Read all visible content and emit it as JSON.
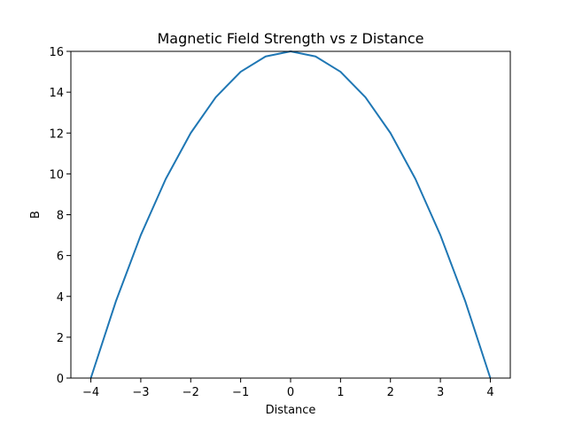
{
  "chart_data": {
    "type": "line",
    "title": "Magnetic Field Strength vs z Distance",
    "xlabel": "Distance",
    "ylabel": "B",
    "xlim": [
      -4.4,
      4.4
    ],
    "ylim": [
      0,
      16
    ],
    "xticks": [
      -4,
      -3,
      -2,
      -1,
      0,
      1,
      2,
      3,
      4
    ],
    "xtick_labels": [
      "−4",
      "−3",
      "−2",
      "−1",
      "0",
      "1",
      "2",
      "3",
      "4"
    ],
    "yticks": [
      0,
      2,
      4,
      6,
      8,
      10,
      12,
      14,
      16
    ],
    "ytick_labels": [
      "0",
      "2",
      "4",
      "6",
      "8",
      "10",
      "12",
      "14",
      "16"
    ],
    "grid": false,
    "series": [
      {
        "color": "#1f77b4",
        "x": [
          -4.0,
          -3.5,
          -3.0,
          -2.5,
          -2.0,
          -1.5,
          -1.0,
          -0.5,
          0.0,
          0.5,
          1.0,
          1.5,
          2.0,
          2.5,
          3.0,
          3.5,
          4.0
        ],
        "y": [
          0.0,
          3.75,
          7.0,
          9.75,
          12.0,
          13.75,
          15.0,
          15.75,
          16.0,
          15.75,
          15.0,
          13.75,
          12.0,
          9.75,
          7.0,
          3.75,
          0.0
        ]
      }
    ]
  }
}
